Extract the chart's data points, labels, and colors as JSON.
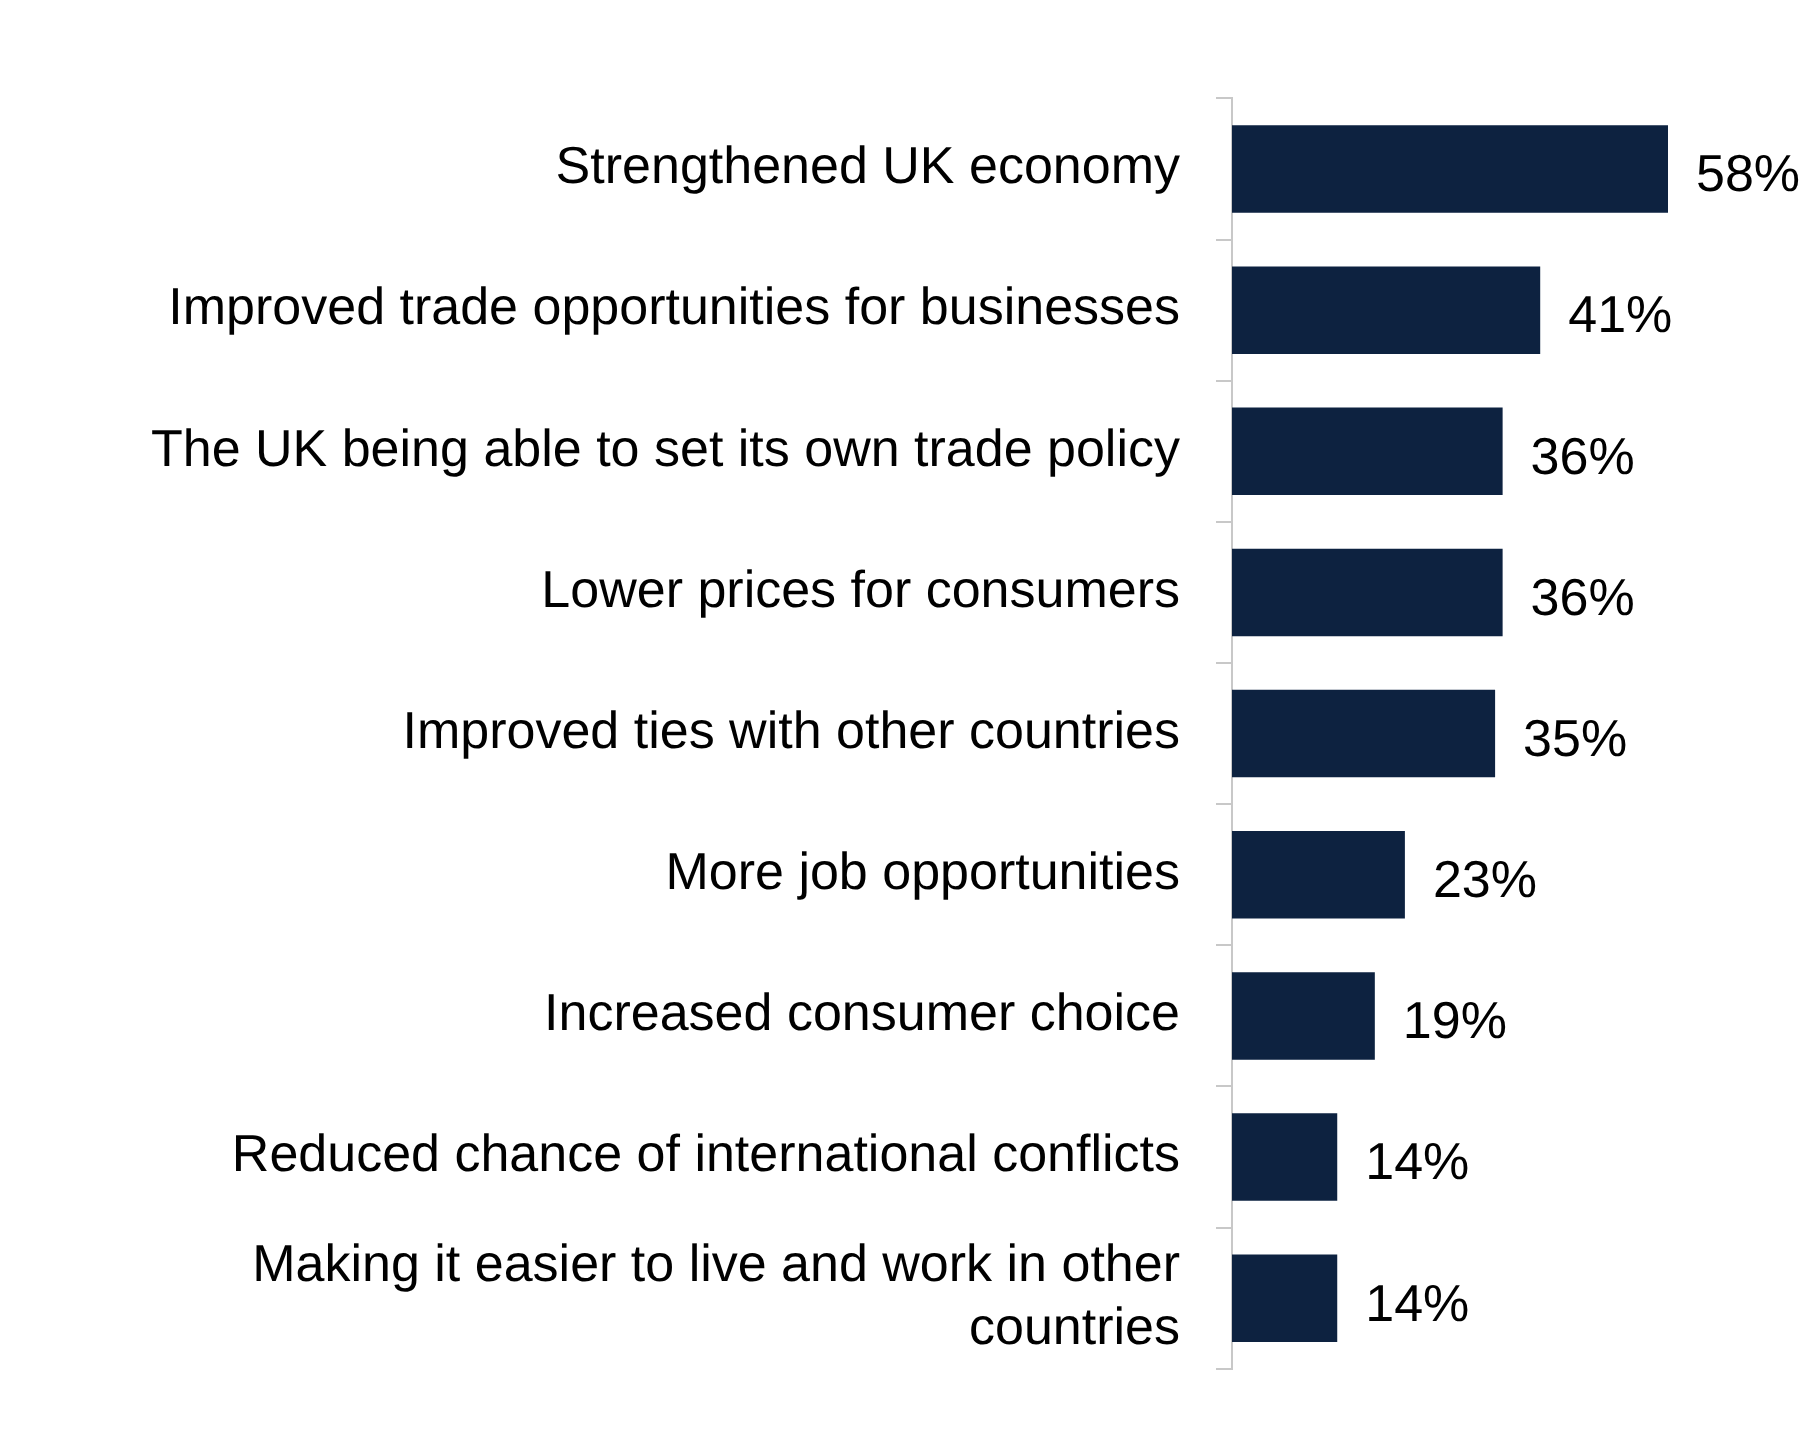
{
  "chart_data": {
    "type": "bar",
    "orientation": "horizontal",
    "tick_labels": "y",
    "categories": [
      "Strengthened UK economy",
      "Improved trade opportunities for businesses",
      "The UK being able to set its own trade policy",
      "Lower prices for consumers",
      "Improved ties with other countries",
      "More job opportunities",
      "Increased consumer choice",
      "Reduced chance of international conflicts",
      "Making it easier to live and work in other countries"
    ],
    "values": [
      58,
      41,
      36,
      36,
      35,
      23,
      19,
      14,
      14
    ],
    "value_labels": [
      "58%",
      "41%",
      "36%",
      "36%",
      "35%",
      "23%",
      "19%",
      "14%",
      "14%"
    ],
    "color": "#0d2240"
  }
}
